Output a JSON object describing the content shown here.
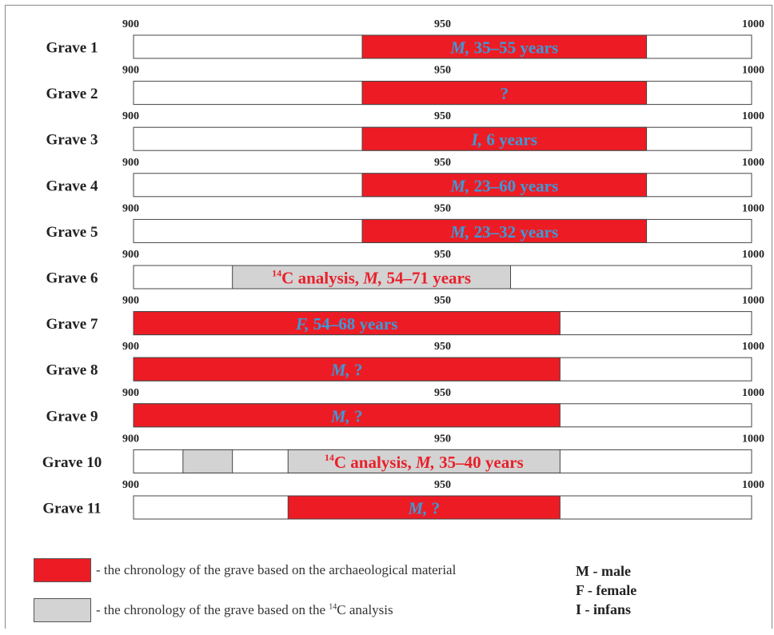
{
  "chart_data": {
    "type": "bar",
    "axis_min": 900,
    "axis_max": 1000,
    "tick_labels": [
      "900",
      "950",
      "1000"
    ],
    "colors": {
      "archaeological": "#ed1c24",
      "c14": "#d3d3d3",
      "text_blue": "#3b9ad9",
      "text_red": "#e8202a"
    },
    "rows": [
      {
        "label": "Grave 1",
        "bars": [
          {
            "start": 937,
            "end": 983,
            "kind": "archaeological",
            "text_italic": "M,",
            "text_rest": " 35–55 years",
            "text_color": "#3b9ad9"
          }
        ]
      },
      {
        "label": "Grave 2",
        "bars": [
          {
            "start": 937,
            "end": 983,
            "kind": "archaeological",
            "text_italic": "",
            "text_rest": "?",
            "text_color": "#3b9ad9"
          }
        ]
      },
      {
        "label": "Grave 3",
        "bars": [
          {
            "start": 937,
            "end": 983,
            "kind": "archaeological",
            "text_italic": "I,",
            "text_rest": " 6 years",
            "text_color": "#3b9ad9"
          }
        ]
      },
      {
        "label": "Grave 4",
        "bars": [
          {
            "start": 937,
            "end": 983,
            "kind": "archaeological",
            "text_italic": "M,",
            "text_rest": " 23–60 years",
            "text_color": "#3b9ad9"
          }
        ]
      },
      {
        "label": "Grave 5",
        "bars": [
          {
            "start": 937,
            "end": 983,
            "kind": "archaeological",
            "text_italic": "M,",
            "text_rest": " 23–32 years",
            "text_color": "#3b9ad9"
          }
        ]
      },
      {
        "label": "Grave 6",
        "bars": [
          {
            "start": 916,
            "end": 961,
            "kind": "c14",
            "text_sup": "14",
            "text_pre": "C analysis, ",
            "text_italic": "M,",
            "text_rest": " 54–71 years",
            "text_color": "#e8202a"
          }
        ]
      },
      {
        "label": "Grave 7",
        "bars": [
          {
            "start": 900,
            "end": 969,
            "kind": "archaeological",
            "text_italic": "F,",
            "text_rest": " 54–68 years",
            "text_color": "#3b9ad9"
          }
        ]
      },
      {
        "label": "Grave 8",
        "bars": [
          {
            "start": 900,
            "end": 969,
            "kind": "archaeological",
            "text_italic": "M,",
            "text_rest": " ?",
            "text_color": "#3b9ad9"
          }
        ]
      },
      {
        "label": "Grave 9",
        "bars": [
          {
            "start": 900,
            "end": 969,
            "kind": "archaeological",
            "text_italic": "M,",
            "text_rest": " ?",
            "text_color": "#3b9ad9"
          }
        ]
      },
      {
        "label": "Grave 10",
        "bars": [
          {
            "start": 908,
            "end": 916,
            "kind": "c14",
            "text_italic": "",
            "text_rest": "",
            "text_color": "#e8202a"
          },
          {
            "start": 925,
            "end": 969,
            "kind": "c14",
            "text_sup": "14",
            "text_pre": "C analysis, ",
            "text_italic": "M,",
            "text_rest": " 35–40 years",
            "text_color": "#e8202a"
          }
        ]
      },
      {
        "label": "Grave 11",
        "bars": [
          {
            "start": 925,
            "end": 969,
            "kind": "archaeological",
            "text_italic": "M,",
            "text_rest": " ?",
            "text_color": "#3b9ad9"
          }
        ]
      }
    ]
  },
  "legend": {
    "archaeological": "- the chronology of the grave based on the archaeological material",
    "c14_pre": "- the chronology of the grave based on the ",
    "c14_sup": "14",
    "c14_post": "C analysis"
  },
  "abbreviations": [
    "M - male",
    "F  - female",
    "I  - infans"
  ]
}
